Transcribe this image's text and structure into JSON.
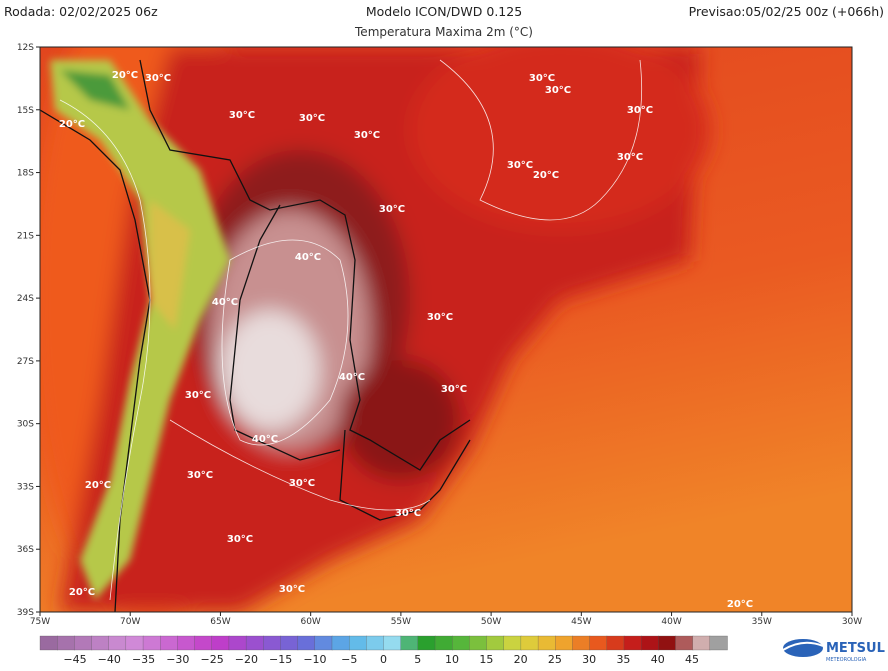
{
  "header": {
    "run": "Rodada: 02/02/2025 06z",
    "title": "Modelo ICON/DWD 0.125",
    "subtitle": "Temperatura Maxima 2m (°C)",
    "forecast": "Previsao:05/02/25 00z (+066h)"
  },
  "map": {
    "lat_labels": [
      "12S",
      "15S",
      "18S",
      "21S",
      "24S",
      "27S",
      "30S",
      "33S",
      "36S",
      "39S"
    ],
    "lon_labels": [
      "75W",
      "70W",
      "65W",
      "60W",
      "55W",
      "50W",
      "45W",
      "40W",
      "35W",
      "30W"
    ],
    "contour_labels": [
      "20°C",
      "30°C",
      "30°C",
      "30°C",
      "30°C",
      "30°C",
      "30°C",
      "30°C",
      "30°C",
      "30°C",
      "20°C",
      "20°C",
      "40°C",
      "40°C",
      "40°C",
      "30°C",
      "30°C",
      "30°C",
      "30°C",
      "40°C",
      "30°C",
      "30°C",
      "20°C",
      "30°C",
      "30°C",
      "30°C",
      "20°C",
      "20°C"
    ]
  },
  "colorbar": {
    "labels": [
      "−45",
      "−40",
      "−35",
      "−30",
      "−25",
      "−20",
      "−15",
      "−10",
      "−5",
      "0",
      "5",
      "10",
      "15",
      "20",
      "25",
      "30",
      "35",
      "40",
      "45"
    ]
  },
  "logo": {
    "name": "METSUL",
    "tagline": "METEOROLOGIA"
  }
}
